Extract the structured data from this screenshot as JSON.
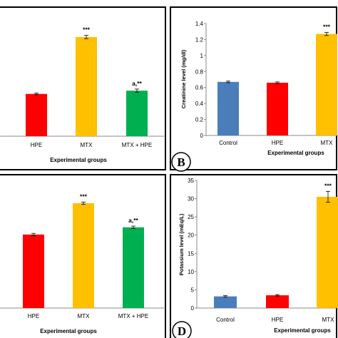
{
  "colors": {
    "control": "#4a7ebb",
    "hpe": "#ff0000",
    "mtx": "#ffc000",
    "mtx_hpe": "#00b050"
  },
  "chart_data": [
    {
      "panel": "",
      "type": "bar",
      "categories": [
        "HPE",
        "MTX",
        "MTX + HPE"
      ],
      "values": [
        0.52,
        1.22,
        0.56
      ],
      "errors": [
        0.01,
        0.02,
        0.02
      ],
      "significance": [
        "",
        "***",
        "a,**"
      ],
      "colors": [
        "#ff0000",
        "#ffc000",
        "#00b050"
      ],
      "xlabel": "Experimental groups",
      "ylabel": "",
      "yticks": [],
      "ylim": [
        0,
        1.5
      ]
    },
    {
      "panel": "B",
      "type": "bar",
      "categories": [
        "Control",
        "HPE",
        "MTX"
      ],
      "values": [
        0.67,
        0.66,
        1.27
      ],
      "errors": [
        0.01,
        0.01,
        0.02
      ],
      "significance": [
        "",
        "",
        "***"
      ],
      "colors": [
        "#4a7ebb",
        "#ff0000",
        "#ffc000"
      ],
      "xlabel": "Experimental groups",
      "ylabel": "Creatinine level (mg/dl)",
      "yticks": [
        "0",
        "0.2",
        "0.4",
        "0.6",
        "0.8",
        "1",
        "1.2",
        "1.4"
      ],
      "ylim": [
        0,
        1.4
      ]
    },
    {
      "panel": "",
      "type": "bar",
      "categories": [
        "HPE",
        "MTX",
        "MTX + HPE"
      ],
      "values": [
        0.61,
        0.87,
        0.67
      ],
      "errors": [
        0.01,
        0.01,
        0.01
      ],
      "significance": [
        "",
        "***",
        "a,**"
      ],
      "colors": [
        "#ff0000",
        "#ffc000",
        "#00b050"
      ],
      "xlabel": "Experimental groups",
      "ylabel": "",
      "yticks": [],
      "ylim": [
        0,
        1.0
      ]
    },
    {
      "panel": "D",
      "type": "bar",
      "categories": [
        "Control",
        "HPE",
        "MTX"
      ],
      "values": [
        3.2,
        3.5,
        30.5
      ],
      "errors": [
        0.2,
        0.2,
        1.5
      ],
      "significance": [
        "",
        "",
        "***"
      ],
      "colors": [
        "#4a7ebb",
        "#ff0000",
        "#ffc000"
      ],
      "xlabel": "Experimental groups",
      "ylabel": "Potassium level (mEq/L)",
      "yticks": [
        "0",
        "5",
        "10",
        "15",
        "20",
        "25",
        "30",
        "35"
      ],
      "ylim": [
        0,
        35
      ]
    }
  ]
}
